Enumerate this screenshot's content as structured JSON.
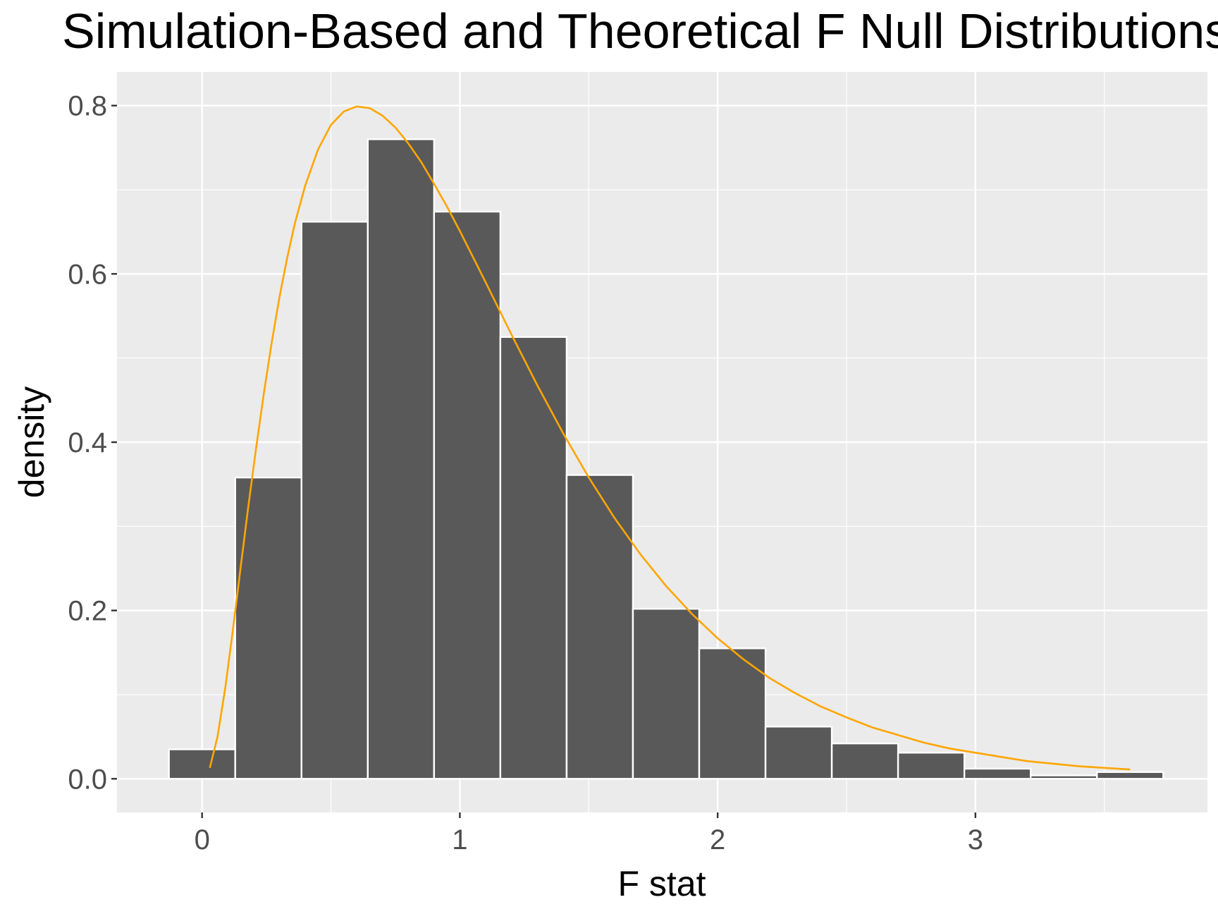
{
  "chart_data": {
    "type": "bar",
    "title": "Simulation-Based and Theoretical F Null Distributions",
    "xlabel": "F stat",
    "ylabel": "density",
    "xlim": [
      -0.33,
      3.9
    ],
    "ylim": [
      -0.04,
      0.84
    ],
    "x_ticks": [
      0,
      1,
      2,
      3
    ],
    "x_tick_labels": [
      "0",
      "1",
      "2",
      "3"
    ],
    "y_ticks": [
      0.0,
      0.2,
      0.4,
      0.6,
      0.8
    ],
    "y_tick_labels": [
      "0.0",
      "0.2",
      "0.4",
      "0.6",
      "0.8"
    ],
    "grid": true,
    "legend": "none",
    "panel_background": "#ebebeb",
    "grid_color": "#ffffff",
    "histogram": {
      "fill": "#595959",
      "outline": "#ffffff",
      "bin_width": 0.2571,
      "bin_left_edges": [
        -0.1286,
        0.1286,
        0.3857,
        0.6429,
        0.9,
        1.1571,
        1.4143,
        1.6714,
        1.9286,
        2.1857,
        2.4429,
        2.7,
        2.9571,
        3.2143,
        3.4714
      ],
      "values": [
        0.035,
        0.358,
        0.662,
        0.76,
        0.674,
        0.525,
        0.361,
        0.202,
        0.155,
        0.062,
        0.042,
        0.031,
        0.012,
        0.004,
        0.008
      ]
    },
    "series": [
      {
        "type": "line",
        "color": "#ffa500",
        "x": [
          0.03,
          0.06,
          0.09,
          0.12,
          0.15,
          0.18,
          0.21,
          0.24,
          0.27,
          0.3,
          0.33,
          0.36,
          0.4,
          0.45,
          0.5,
          0.55,
          0.6,
          0.65,
          0.7,
          0.75,
          0.8,
          0.85,
          0.9,
          0.95,
          1.0,
          1.1,
          1.2,
          1.3,
          1.4,
          1.5,
          1.6,
          1.7,
          1.8,
          1.9,
          2.0,
          2.1,
          2.2,
          2.3,
          2.4,
          2.5,
          2.6,
          2.7,
          2.8,
          2.9,
          3.0,
          3.1,
          3.2,
          3.3,
          3.4,
          3.5,
          3.6
        ],
        "y": [
          0.013,
          0.05,
          0.108,
          0.178,
          0.252,
          0.325,
          0.394,
          0.459,
          0.518,
          0.572,
          0.619,
          0.66,
          0.705,
          0.748,
          0.777,
          0.793,
          0.799,
          0.797,
          0.788,
          0.774,
          0.755,
          0.733,
          0.707,
          0.68,
          0.651,
          0.59,
          0.528,
          0.468,
          0.411,
          0.358,
          0.31,
          0.267,
          0.229,
          0.196,
          0.167,
          0.142,
          0.12,
          0.102,
          0.086,
          0.073,
          0.061,
          0.052,
          0.043,
          0.036,
          0.031,
          0.026,
          0.021,
          0.018,
          0.015,
          0.013,
          0.011
        ]
      }
    ]
  }
}
